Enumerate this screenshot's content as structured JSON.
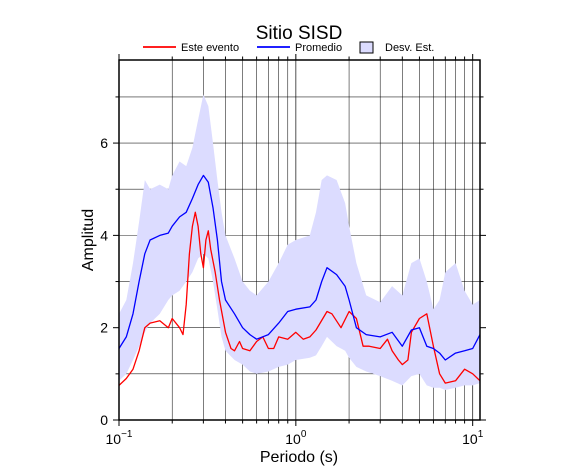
{
  "chart_data": {
    "type": "line",
    "title": "Sitio SISD",
    "xlabel": "Periodo (s)",
    "ylabel": "Amplitud",
    "xscale": "log",
    "xlim": [
      0.1,
      11
    ],
    "ylim": [
      0,
      7.8
    ],
    "grid": true,
    "legend_position": "top",
    "y_ticks": [
      "0",
      "2",
      "4",
      "6"
    ],
    "x_ticks": [
      {
        "base": "10",
        "exp": "−1"
      },
      {
        "base": "10",
        "exp": "0"
      },
      {
        "base": "10",
        "exp": "1"
      }
    ],
    "legend": [
      {
        "label": "Este evento",
        "color": "#ff0000",
        "kind": "line"
      },
      {
        "label": "Promedio",
        "color": "#0000ff",
        "kind": "line"
      },
      {
        "label": "Desv. Est.",
        "color": "#dcdcff",
        "kind": "band"
      }
    ],
    "series": [
      {
        "name": "Este evento",
        "color": "#ff0000",
        "points": [
          [
            0.1,
            0.75
          ],
          [
            0.11,
            0.9
          ],
          [
            0.12,
            1.1
          ],
          [
            0.13,
            1.5
          ],
          [
            0.14,
            2.0
          ],
          [
            0.15,
            2.1
          ],
          [
            0.17,
            2.15
          ],
          [
            0.19,
            2.0
          ],
          [
            0.2,
            2.2
          ],
          [
            0.22,
            2.0
          ],
          [
            0.23,
            1.85
          ],
          [
            0.24,
            2.5
          ],
          [
            0.25,
            3.6
          ],
          [
            0.26,
            4.2
          ],
          [
            0.27,
            4.5
          ],
          [
            0.28,
            4.2
          ],
          [
            0.29,
            3.6
          ],
          [
            0.3,
            3.3
          ],
          [
            0.31,
            3.9
          ],
          [
            0.32,
            4.1
          ],
          [
            0.33,
            3.7
          ],
          [
            0.35,
            3.2
          ],
          [
            0.37,
            2.6
          ],
          [
            0.4,
            1.9
          ],
          [
            0.43,
            1.55
          ],
          [
            0.45,
            1.5
          ],
          [
            0.48,
            1.7
          ],
          [
            0.5,
            1.55
          ],
          [
            0.55,
            1.5
          ],
          [
            0.6,
            1.7
          ],
          [
            0.65,
            1.8
          ],
          [
            0.7,
            1.55
          ],
          [
            0.75,
            1.55
          ],
          [
            0.8,
            1.8
          ],
          [
            0.9,
            1.75
          ],
          [
            1.0,
            1.9
          ],
          [
            1.1,
            1.75
          ],
          [
            1.2,
            1.8
          ],
          [
            1.3,
            1.95
          ],
          [
            1.5,
            2.35
          ],
          [
            1.6,
            2.3
          ],
          [
            1.8,
            2.0
          ],
          [
            2.0,
            2.35
          ],
          [
            2.2,
            2.2
          ],
          [
            2.4,
            1.6
          ],
          [
            2.6,
            1.6
          ],
          [
            3.0,
            1.55
          ],
          [
            3.3,
            1.75
          ],
          [
            3.5,
            1.5
          ],
          [
            3.8,
            1.3
          ],
          [
            4.0,
            1.2
          ],
          [
            4.3,
            1.3
          ],
          [
            4.5,
            1.9
          ],
          [
            5.0,
            2.2
          ],
          [
            5.5,
            2.3
          ],
          [
            6.0,
            1.6
          ],
          [
            6.5,
            1.0
          ],
          [
            7.0,
            0.8
          ],
          [
            8.0,
            0.85
          ],
          [
            9.0,
            1.1
          ],
          [
            10.0,
            1.0
          ],
          [
            11.0,
            0.85
          ]
        ]
      },
      {
        "name": "Promedio",
        "color": "#0000ff",
        "points": [
          [
            0.1,
            1.55
          ],
          [
            0.11,
            1.8
          ],
          [
            0.12,
            2.3
          ],
          [
            0.13,
            3.0
          ],
          [
            0.14,
            3.6
          ],
          [
            0.15,
            3.9
          ],
          [
            0.17,
            4.0
          ],
          [
            0.19,
            4.05
          ],
          [
            0.2,
            4.2
          ],
          [
            0.22,
            4.4
          ],
          [
            0.24,
            4.5
          ],
          [
            0.26,
            4.8
          ],
          [
            0.28,
            5.1
          ],
          [
            0.3,
            5.3
          ],
          [
            0.32,
            5.15
          ],
          [
            0.34,
            4.6
          ],
          [
            0.36,
            3.9
          ],
          [
            0.38,
            3.0
          ],
          [
            0.4,
            2.6
          ],
          [
            0.45,
            2.3
          ],
          [
            0.5,
            2.0
          ],
          [
            0.55,
            1.85
          ],
          [
            0.6,
            1.75
          ],
          [
            0.7,
            1.85
          ],
          [
            0.8,
            2.1
          ],
          [
            0.9,
            2.35
          ],
          [
            1.0,
            2.4
          ],
          [
            1.2,
            2.45
          ],
          [
            1.3,
            2.6
          ],
          [
            1.4,
            3.0
          ],
          [
            1.5,
            3.3
          ],
          [
            1.7,
            3.15
          ],
          [
            1.9,
            2.9
          ],
          [
            2.0,
            2.6
          ],
          [
            2.2,
            2.0
          ],
          [
            2.5,
            1.85
          ],
          [
            3.0,
            1.8
          ],
          [
            3.5,
            1.9
          ],
          [
            4.0,
            1.6
          ],
          [
            4.5,
            1.95
          ],
          [
            5.0,
            2.0
          ],
          [
            5.5,
            1.6
          ],
          [
            6.0,
            1.55
          ],
          [
            6.5,
            1.45
          ],
          [
            7.0,
            1.3
          ],
          [
            8.0,
            1.45
          ],
          [
            9.0,
            1.5
          ],
          [
            10.0,
            1.55
          ],
          [
            11.0,
            1.85
          ]
        ]
      }
    ],
    "band": {
      "name": "Desv. Est.",
      "color": "#dcdcff",
      "upper": [
        [
          0.1,
          2.3
        ],
        [
          0.11,
          2.6
        ],
        [
          0.12,
          3.4
        ],
        [
          0.13,
          4.3
        ],
        [
          0.14,
          5.2
        ],
        [
          0.15,
          5.0
        ],
        [
          0.17,
          5.1
        ],
        [
          0.19,
          5.0
        ],
        [
          0.2,
          5.3
        ],
        [
          0.22,
          5.6
        ],
        [
          0.24,
          5.5
        ],
        [
          0.26,
          5.9
        ],
        [
          0.28,
          6.5
        ],
        [
          0.3,
          7.05
        ],
        [
          0.32,
          6.8
        ],
        [
          0.34,
          6.0
        ],
        [
          0.36,
          5.2
        ],
        [
          0.38,
          4.5
        ],
        [
          0.4,
          4.0
        ],
        [
          0.45,
          3.5
        ],
        [
          0.5,
          3.0
        ],
        [
          0.55,
          2.8
        ],
        [
          0.6,
          2.7
        ],
        [
          0.7,
          3.0
        ],
        [
          0.8,
          3.4
        ],
        [
          0.9,
          3.8
        ],
        [
          1.0,
          3.9
        ],
        [
          1.2,
          4.0
        ],
        [
          1.3,
          4.5
        ],
        [
          1.4,
          5.2
        ],
        [
          1.5,
          5.3
        ],
        [
          1.7,
          5.2
        ],
        [
          1.9,
          4.7
        ],
        [
          2.0,
          4.2
        ],
        [
          2.2,
          3.4
        ],
        [
          2.5,
          2.7
        ],
        [
          3.0,
          2.55
        ],
        [
          3.5,
          2.9
        ],
        [
          4.0,
          2.7
        ],
        [
          4.5,
          3.4
        ],
        [
          5.0,
          3.5
        ],
        [
          5.5,
          3.0
        ],
        [
          6.0,
          2.4
        ],
        [
          6.5,
          2.6
        ],
        [
          7.0,
          3.2
        ],
        [
          8.0,
          3.4
        ],
        [
          9.0,
          2.8
        ],
        [
          10.0,
          2.5
        ],
        [
          11.0,
          2.6
        ]
      ],
      "lower": [
        [
          0.1,
          0.85
        ],
        [
          0.11,
          1.0
        ],
        [
          0.12,
          1.3
        ],
        [
          0.13,
          1.6
        ],
        [
          0.14,
          1.9
        ],
        [
          0.15,
          2.1
        ],
        [
          0.17,
          2.3
        ],
        [
          0.19,
          2.6
        ],
        [
          0.2,
          2.7
        ],
        [
          0.22,
          2.8
        ],
        [
          0.24,
          3.0
        ],
        [
          0.26,
          3.2
        ],
        [
          0.28,
          3.5
        ],
        [
          0.3,
          3.6
        ],
        [
          0.32,
          3.5
        ],
        [
          0.34,
          3.0
        ],
        [
          0.36,
          2.4
        ],
        [
          0.38,
          1.8
        ],
        [
          0.4,
          1.5
        ],
        [
          0.45,
          1.3
        ],
        [
          0.5,
          1.2
        ],
        [
          0.55,
          1.05
        ],
        [
          0.6,
          1.0
        ],
        [
          0.7,
          1.05
        ],
        [
          0.8,
          1.15
        ],
        [
          0.9,
          1.2
        ],
        [
          1.0,
          1.3
        ],
        [
          1.2,
          1.35
        ],
        [
          1.3,
          1.4
        ],
        [
          1.4,
          1.6
        ],
        [
          1.5,
          1.8
        ],
        [
          1.7,
          1.6
        ],
        [
          1.9,
          1.5
        ],
        [
          2.0,
          1.35
        ],
        [
          2.2,
          1.15
        ],
        [
          2.5,
          1.05
        ],
        [
          3.0,
          0.95
        ],
        [
          3.5,
          0.85
        ],
        [
          4.0,
          0.75
        ],
        [
          4.5,
          0.95
        ],
        [
          5.0,
          1.0
        ],
        [
          5.5,
          0.75
        ],
        [
          6.0,
          0.7
        ],
        [
          6.5,
          0.7
        ],
        [
          7.0,
          0.65
        ],
        [
          8.0,
          0.7
        ],
        [
          9.0,
          0.75
        ],
        [
          10.0,
          0.75
        ],
        [
          11.0,
          0.8
        ]
      ]
    }
  }
}
